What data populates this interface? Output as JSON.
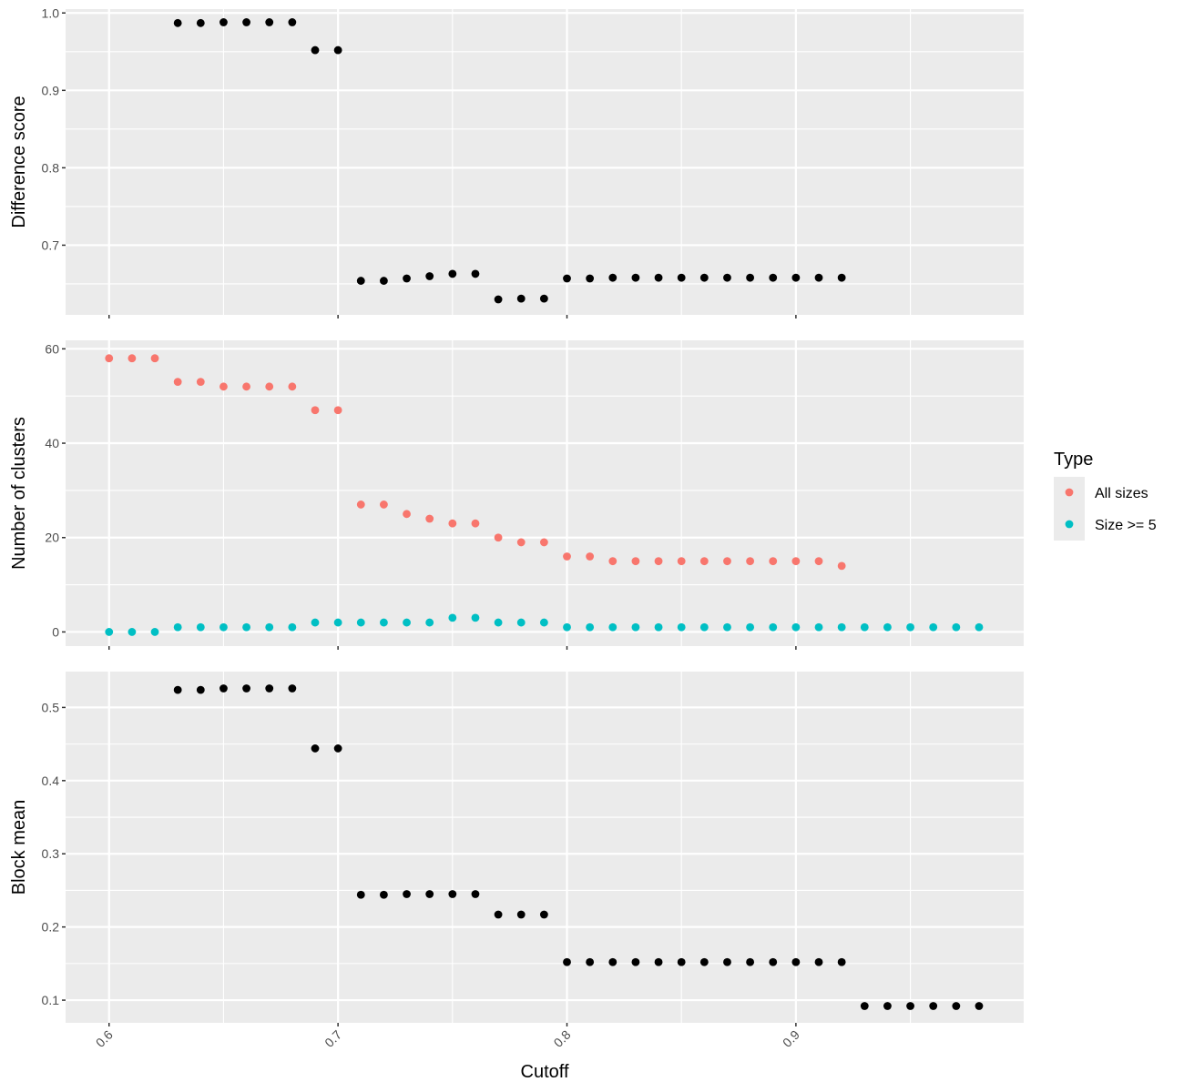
{
  "chart_data": {
    "type": "scatter",
    "x_axis": {
      "label": "Cutoff",
      "range": [
        0.581,
        0.9995
      ],
      "ticks": [
        0.6,
        0.7,
        0.8,
        0.9
      ],
      "tick_labels": [
        "0.6",
        "0.7",
        "0.8",
        "0.9"
      ],
      "tick_label_rotation_deg": 45
    },
    "grid": true,
    "background": "#ebebeb",
    "panels": [
      {
        "ylabel": "Difference score",
        "ylim": [
          0.61,
          1.005
        ],
        "yticks": [
          0.7,
          0.8,
          0.9,
          1.0
        ],
        "ytick_labels": [
          "0.7",
          "0.8",
          "0.9",
          "1.0"
        ],
        "series": [
          {
            "color": "#000000",
            "x": [
              0.63,
              0.64,
              0.65,
              0.66,
              0.67,
              0.68,
              0.69,
              0.7,
              0.71,
              0.72,
              0.73,
              0.74,
              0.75,
              0.76,
              0.77,
              0.78,
              0.79,
              0.8,
              0.81,
              0.82,
              0.83,
              0.84,
              0.85,
              0.86,
              0.87,
              0.88,
              0.89,
              0.9,
              0.91,
              0.92
            ],
            "y": [
              0.987,
              0.987,
              0.988,
              0.988,
              0.988,
              0.988,
              0.952,
              0.952,
              0.654,
              0.654,
              0.657,
              0.66,
              0.663,
              0.663,
              0.63,
              0.631,
              0.631,
              0.657,
              0.657,
              0.658,
              0.658,
              0.658,
              0.658,
              0.658,
              0.658,
              0.658,
              0.658,
              0.658,
              0.658,
              0.658
            ]
          }
        ]
      },
      {
        "ylabel": "Number of clusters",
        "ylim": [
          -3,
          61.8
        ],
        "yticks": [
          0,
          20,
          40,
          60
        ],
        "ytick_labels": [
          "0",
          "20",
          "40",
          "60"
        ],
        "series": [
          {
            "name": "All sizes",
            "color": "#f8766d",
            "x": [
              0.6,
              0.61,
              0.62,
              0.63,
              0.64,
              0.65,
              0.66,
              0.67,
              0.68,
              0.69,
              0.7,
              0.71,
              0.72,
              0.73,
              0.74,
              0.75,
              0.76,
              0.77,
              0.78,
              0.79,
              0.8,
              0.81,
              0.82,
              0.83,
              0.84,
              0.85,
              0.86,
              0.87,
              0.88,
              0.89,
              0.9,
              0.91,
              0.92
            ],
            "y": [
              58,
              58,
              58,
              53,
              53,
              52,
              52,
              52,
              52,
              47,
              47,
              27,
              27,
              25,
              24,
              23,
              23,
              20,
              19,
              19,
              16,
              16,
              15,
              15,
              15,
              15,
              15,
              15,
              15,
              15,
              15,
              15,
              14
            ]
          },
          {
            "name": "Size >= 5",
            "color": "#00bfc4",
            "x": [
              0.6,
              0.61,
              0.62,
              0.63,
              0.64,
              0.65,
              0.66,
              0.67,
              0.68,
              0.69,
              0.7,
              0.71,
              0.72,
              0.73,
              0.74,
              0.75,
              0.76,
              0.77,
              0.78,
              0.79,
              0.8,
              0.81,
              0.82,
              0.83,
              0.84,
              0.85,
              0.86,
              0.87,
              0.88,
              0.89,
              0.9,
              0.91,
              0.92,
              0.93,
              0.94,
              0.95,
              0.96,
              0.97,
              0.98
            ],
            "y": [
              0,
              0,
              0,
              1,
              1,
              1,
              1,
              1,
              1,
              2,
              2,
              2,
              2,
              2,
              2,
              3,
              3,
              2,
              2,
              2,
              1,
              1,
              1,
              1,
              1,
              1,
              1,
              1,
              1,
              1,
              1,
              1,
              1,
              1,
              1,
              1,
              1,
              1,
              1
            ]
          }
        ]
      },
      {
        "ylabel": "Block mean",
        "ylim": [
          0.069,
          0.549
        ],
        "yticks": [
          0.1,
          0.2,
          0.3,
          0.4,
          0.5
        ],
        "ytick_labels": [
          "0.1",
          "0.2",
          "0.3",
          "0.4",
          "0.5"
        ],
        "series": [
          {
            "color": "#000000",
            "x": [
              0.63,
              0.64,
              0.65,
              0.66,
              0.67,
              0.68,
              0.69,
              0.7,
              0.71,
              0.72,
              0.73,
              0.74,
              0.75,
              0.76,
              0.77,
              0.78,
              0.79,
              0.8,
              0.81,
              0.82,
              0.83,
              0.84,
              0.85,
              0.86,
              0.87,
              0.88,
              0.89,
              0.9,
              0.91,
              0.92,
              0.93,
              0.94,
              0.95,
              0.96,
              0.97,
              0.98
            ],
            "y": [
              0.524,
              0.524,
              0.526,
              0.526,
              0.526,
              0.526,
              0.444,
              0.444,
              0.244,
              0.244,
              0.245,
              0.245,
              0.245,
              0.245,
              0.217,
              0.217,
              0.217,
              0.152,
              0.152,
              0.152,
              0.152,
              0.152,
              0.152,
              0.152,
              0.152,
              0.152,
              0.152,
              0.152,
              0.152,
              0.152,
              0.092,
              0.092,
              0.092,
              0.092,
              0.092,
              0.092
            ]
          }
        ]
      }
    ],
    "legend": {
      "title": "Type",
      "position": "right",
      "entries": [
        {
          "label": "All sizes",
          "color": "#f8766d"
        },
        {
          "label": "Size >= 5",
          "color": "#00bfc4"
        }
      ]
    }
  }
}
